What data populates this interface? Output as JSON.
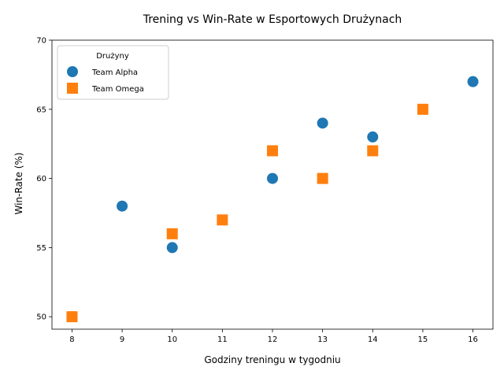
{
  "chart_data": {
    "type": "scatter",
    "title": "Trening vs Win-Rate w Esportowych Drużynach",
    "xlabel": "Godziny treningu w tygodniu",
    "ylabel": "Win-Rate (%)",
    "xlim": [
      7.6,
      16.4
    ],
    "ylim": [
      49.1,
      70
    ],
    "xticks": [
      8,
      9,
      10,
      11,
      12,
      13,
      14,
      15,
      16
    ],
    "yticks": [
      50,
      55,
      60,
      65,
      70
    ],
    "grid": false,
    "legend": {
      "title": "Drużyny",
      "placement": "top-left"
    },
    "series": [
      {
        "name": "Team Alpha",
        "marker": "circle",
        "color": "#1f77b4",
        "points": [
          {
            "x": 9,
            "y": 58
          },
          {
            "x": 10,
            "y": 55
          },
          {
            "x": 12,
            "y": 60
          },
          {
            "x": 13,
            "y": 64
          },
          {
            "x": 14,
            "y": 63
          },
          {
            "x": 16,
            "y": 67
          }
        ]
      },
      {
        "name": "Team Omega",
        "marker": "square",
        "color": "#ff7f0e",
        "points": [
          {
            "x": 8,
            "y": 50
          },
          {
            "x": 10,
            "y": 56
          },
          {
            "x": 11,
            "y": 57
          },
          {
            "x": 12,
            "y": 62
          },
          {
            "x": 13,
            "y": 60
          },
          {
            "x": 14,
            "y": 62
          },
          {
            "x": 15,
            "y": 65
          }
        ]
      }
    ]
  }
}
